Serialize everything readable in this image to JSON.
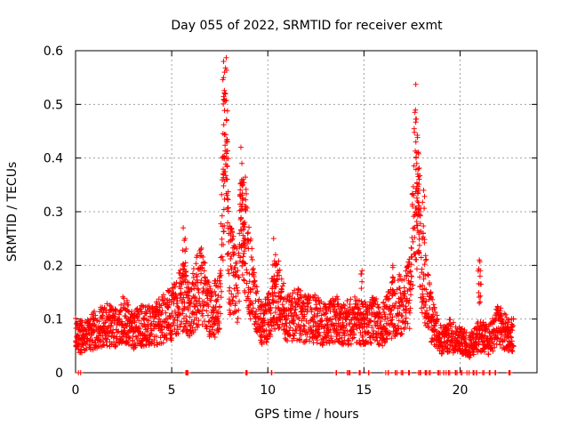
{
  "chart_data": {
    "type": "scatter",
    "title": "Day 055 of 2022, SRMTID for receiver exmt",
    "xlabel": "GPS time / hours",
    "ylabel": "SRMTID / TECUs",
    "xlim": [
      0,
      24
    ],
    "ylim": [
      0,
      0.6
    ],
    "x_ticks": [
      0,
      5,
      10,
      15,
      20
    ],
    "x_tick_labels": [
      "0",
      "5",
      "10",
      "15",
      "20"
    ],
    "y_ticks": [
      0,
      0.1,
      0.2,
      0.3,
      0.4,
      0.5,
      0.6
    ],
    "y_tick_labels": [
      "0",
      "0.1",
      "0.2",
      "0.3",
      "0.4",
      "0.5",
      "0.6"
    ],
    "grid": true,
    "marker": "+",
    "color": "#ff0000",
    "series": [
      {
        "name": "SRMTID",
        "profile_points": [
          [
            0.0,
            0.07
          ],
          [
            0.5,
            0.065
          ],
          [
            1.0,
            0.08
          ],
          [
            1.5,
            0.09
          ],
          [
            2.0,
            0.085
          ],
          [
            2.5,
            0.1
          ],
          [
            3.0,
            0.08
          ],
          [
            3.5,
            0.09
          ],
          [
            4.0,
            0.085
          ],
          [
            4.5,
            0.1
          ],
          [
            5.0,
            0.11
          ],
          [
            5.5,
            0.14
          ],
          [
            6.0,
            0.12
          ],
          [
            6.5,
            0.17
          ],
          [
            7.0,
            0.11
          ],
          [
            7.5,
            0.13
          ],
          [
            7.8,
            0.5
          ],
          [
            8.0,
            0.2
          ],
          [
            8.4,
            0.16
          ],
          [
            8.7,
            0.3
          ],
          [
            9.0,
            0.2
          ],
          [
            9.3,
            0.13
          ],
          [
            9.6,
            0.09
          ],
          [
            10.0,
            0.1
          ],
          [
            10.5,
            0.15
          ],
          [
            11.0,
            0.1
          ],
          [
            11.5,
            0.11
          ],
          [
            12.0,
            0.1
          ],
          [
            12.5,
            0.1
          ],
          [
            13.0,
            0.09
          ],
          [
            13.5,
            0.1
          ],
          [
            14.0,
            0.09
          ],
          [
            14.5,
            0.1
          ],
          [
            15.0,
            0.09
          ],
          [
            15.5,
            0.1
          ],
          [
            16.0,
            0.09
          ],
          [
            16.5,
            0.12
          ],
          [
            17.0,
            0.13
          ],
          [
            17.4,
            0.15
          ],
          [
            17.7,
            0.38
          ],
          [
            18.0,
            0.2
          ],
          [
            18.5,
            0.1
          ],
          [
            19.0,
            0.06
          ],
          [
            19.5,
            0.07
          ],
          [
            20.0,
            0.06
          ],
          [
            20.5,
            0.05
          ],
          [
            21.0,
            0.07
          ],
          [
            21.5,
            0.06
          ],
          [
            22.0,
            0.09
          ],
          [
            22.5,
            0.07
          ],
          [
            22.8,
            0.07
          ]
        ],
        "spikes": [
          [
            5.6,
            0.27
          ],
          [
            5.7,
            0.25
          ],
          [
            7.7,
            0.58
          ],
          [
            7.75,
            0.56
          ],
          [
            7.8,
            0.52
          ],
          [
            7.85,
            0.47
          ],
          [
            7.9,
            0.43
          ],
          [
            7.72,
            0.4
          ],
          [
            8.6,
            0.42
          ],
          [
            8.65,
            0.39
          ],
          [
            8.7,
            0.35
          ],
          [
            8.8,
            0.31
          ],
          [
            10.3,
            0.25
          ],
          [
            10.4,
            0.22
          ],
          [
            14.9,
            0.19
          ],
          [
            16.5,
            0.2
          ],
          [
            17.7,
            0.43
          ],
          [
            17.75,
            0.41
          ],
          [
            17.8,
            0.37
          ],
          [
            17.85,
            0.34
          ],
          [
            17.9,
            0.3
          ],
          [
            18.1,
            0.34
          ],
          [
            21.0,
            0.21
          ],
          [
            21.05,
            0.19
          ]
        ],
        "zero_points_x": [
          0.2,
          5.8,
          8.9,
          10.2,
          13.5,
          14.2,
          14.8,
          15.3,
          16.2,
          16.7,
          17.0,
          17.3,
          17.9,
          18.2,
          18.4,
          18.9,
          19.2,
          19.4,
          19.8,
          20.1,
          20.4,
          20.7,
          20.9,
          21.2,
          21.5,
          21.8,
          22.6
        ]
      }
    ]
  }
}
